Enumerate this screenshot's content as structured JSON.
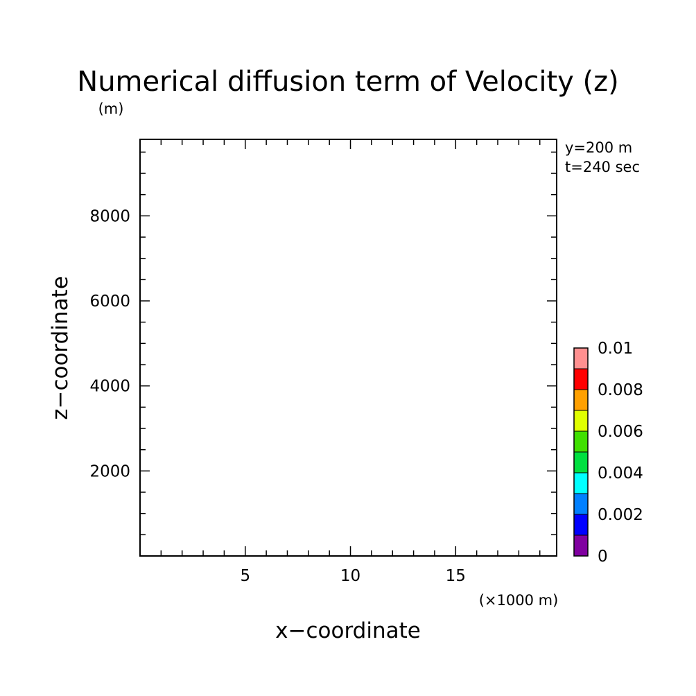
{
  "chart_data": {
    "type": "heatmap",
    "title": "Numerical diffusion term of Velocity (z)",
    "xlabel": "x−coordinate",
    "ylabel": "z−coordinate",
    "x_unit": "(×1000 m)",
    "y_unit": "(m)",
    "annotations": [
      "y=200 m",
      "t=240 sec"
    ],
    "xlim": [
      0,
      19.8
    ],
    "ylim": [
      0,
      9800
    ],
    "x_major_ticks": [
      5,
      10,
      15
    ],
    "x_tick_labels": [
      "5",
      "10",
      "15"
    ],
    "x_minor_step": 1,
    "y_major_ticks": [
      2000,
      4000,
      6000,
      8000
    ],
    "y_tick_labels": [
      "2000",
      "4000",
      "6000",
      "8000"
    ],
    "y_minor_step": 500,
    "grid": false,
    "field_values": [],
    "colorbar": {
      "levels": [
        0,
        0.001,
        0.002,
        0.003,
        0.004,
        0.005,
        0.006,
        0.007,
        0.008,
        0.009,
        0.01
      ],
      "tick_values": [
        0,
        0.002,
        0.004,
        0.006,
        0.008,
        0.01
      ],
      "tick_labels": [
        "0",
        "0.002",
        "0.004",
        "0.006",
        "0.008",
        "0.01"
      ],
      "colors": [
        "#8000a0",
        "#0000ff",
        "#0080ff",
        "#00ffff",
        "#00e040",
        "#40e000",
        "#e0ff00",
        "#ffa000",
        "#ff0000",
        "#ff9090"
      ]
    }
  }
}
